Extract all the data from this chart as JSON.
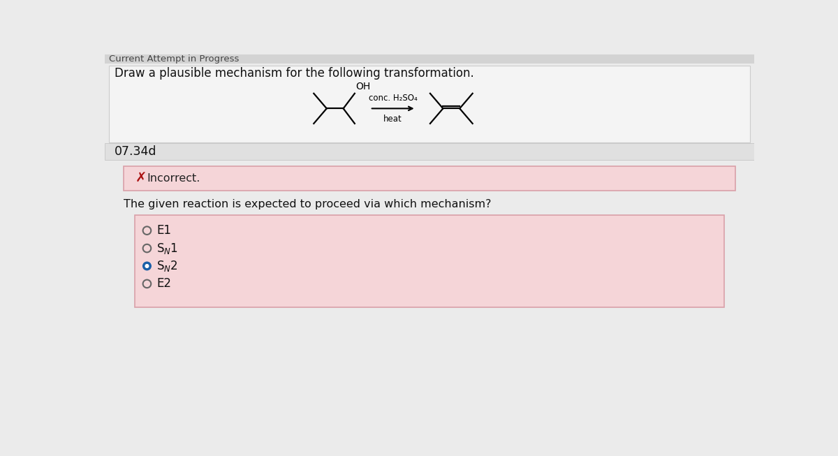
{
  "title_bar_text": "Current Attempt in Progress",
  "section1_text": "Draw a plausible mechanism for the following transformation.",
  "problem_id": "07.34d",
  "incorrect_text": "Incorrect.",
  "question_text": "The given reaction is expected to proceed via which mechanism?",
  "selected_option": 2,
  "reagent_line1": "conc. H₂SO₄",
  "reagent_line2": "heat",
  "bg_color": "#ebebeb",
  "panel_bg": "#f4f4f4",
  "panel_border": "#cccccc",
  "pink_bg": "#f5d5d8",
  "pink_border": "#d9a0a8",
  "selected_color": "#1a5fa8",
  "title_bg": "#d3d3d3",
  "section_divider": "#c0c0c0"
}
